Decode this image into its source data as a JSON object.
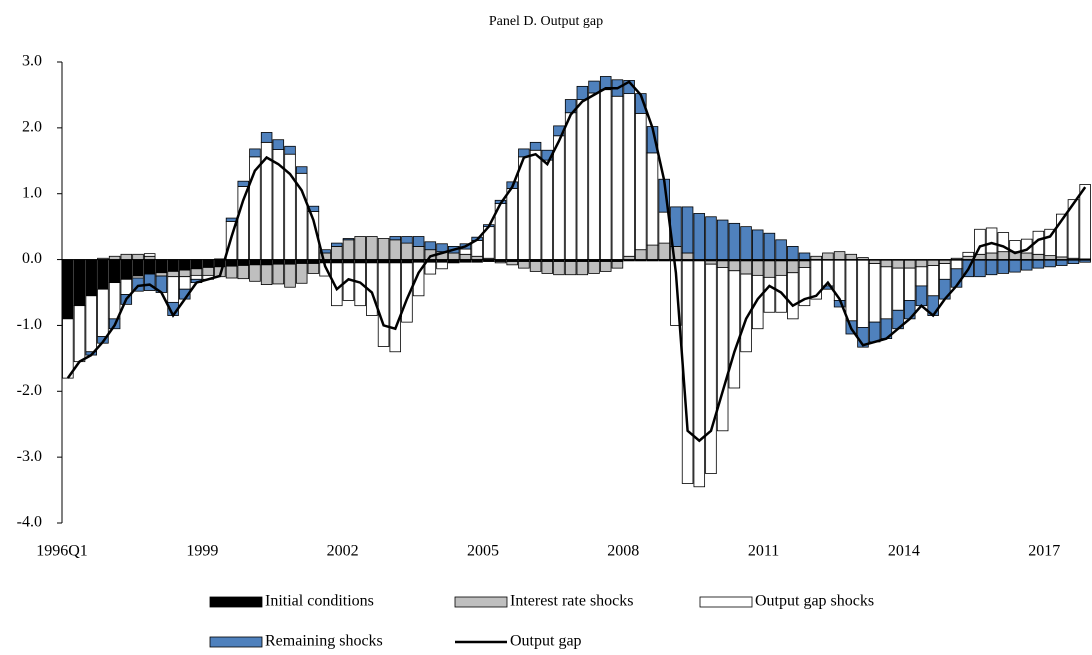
{
  "chart_data": {
    "type": "bar",
    "stacked": true,
    "title": "Panel D. Output gap",
    "categories": [
      "1996Q1",
      null,
      null,
      null,
      null,
      null,
      null,
      null,
      null,
      null,
      null,
      null,
      "1999",
      null,
      null,
      null,
      null,
      null,
      null,
      null,
      null,
      null,
      null,
      null,
      "2002",
      null,
      null,
      null,
      null,
      null,
      null,
      null,
      null,
      null,
      null,
      null,
      "2005",
      null,
      null,
      null,
      null,
      null,
      null,
      null,
      null,
      null,
      null,
      null,
      "2008",
      null,
      null,
      null,
      null,
      null,
      null,
      null,
      null,
      null,
      null,
      null,
      "2011",
      null,
      null,
      null,
      null,
      null,
      null,
      null,
      null,
      null,
      null,
      null,
      "2014",
      null,
      null,
      null,
      null,
      null,
      null,
      null,
      null,
      null,
      null,
      null,
      "2017",
      null,
      null,
      null
    ],
    "ylim": [
      -4,
      3
    ],
    "yticks": [
      {
        "value": -4,
        "label": "-4.0"
      },
      {
        "value": -3,
        "label": "-3.0"
      },
      {
        "value": -2,
        "label": "-2.0"
      },
      {
        "value": -1,
        "label": "-1.0"
      },
      {
        "value": 0,
        "label": "0.0"
      },
      {
        "value": 1,
        "label": "1.0"
      },
      {
        "value": 2,
        "label": "2.0"
      },
      {
        "value": 3,
        "label": "3.0"
      }
    ],
    "grid": false,
    "series": [
      {
        "name": "Initial conditions",
        "color": "#000000",
        "values": [
          -0.9,
          -0.7,
          -0.55,
          -0.45,
          -0.35,
          -0.3,
          -0.25,
          -0.22,
          -0.2,
          -0.18,
          -0.16,
          -0.14,
          -0.12,
          -0.11,
          -0.1,
          -0.09,
          -0.08,
          -0.08,
          -0.07,
          -0.07,
          -0.06,
          -0.06,
          -0.05,
          -0.05,
          -0.05,
          -0.05,
          -0.05,
          -0.05,
          -0.05,
          -0.05,
          -0.04,
          -0.04,
          -0.04,
          -0.04,
          -0.04,
          -0.04,
          -0.03,
          -0.03,
          -0.03,
          -0.03,
          -0.03,
          -0.03,
          -0.03,
          -0.03,
          -0.03,
          -0.03,
          -0.03,
          -0.03,
          -0.02,
          -0.02,
          -0.02,
          -0.02,
          -0.02,
          -0.02,
          -0.02,
          -0.02,
          -0.02,
          -0.02,
          -0.02,
          -0.02,
          -0.02,
          -0.02,
          -0.02,
          -0.02,
          -0.01,
          -0.01,
          -0.01,
          -0.01,
          -0.01,
          -0.01,
          -0.01,
          -0.01,
          -0.01,
          -0.01,
          -0.01,
          -0.01,
          -0.01,
          -0.01,
          -0.01,
          -0.01,
          -0.01,
          -0.01,
          -0.01,
          -0.01,
          -0.01,
          -0.01,
          -0.01,
          -0.01
        ]
      },
      {
        "name": "Interest rate shocks",
        "color": "#bfbfbf",
        "values": [
          0,
          0,
          0,
          0.02,
          0.05,
          0.08,
          0.08,
          0.05,
          -0.05,
          -0.08,
          -0.1,
          -0.1,
          -0.12,
          -0.15,
          -0.18,
          -0.2,
          -0.25,
          -0.3,
          -0.3,
          -0.35,
          -0.3,
          -0.15,
          0.1,
          0.2,
          0.3,
          0.35,
          0.35,
          0.32,
          0.3,
          0.25,
          0.2,
          0.15,
          0.12,
          0.1,
          0.08,
          0.05,
          0.02,
          -0.02,
          -0.05,
          -0.1,
          -0.15,
          -0.18,
          -0.2,
          -0.2,
          -0.2,
          -0.18,
          -0.15,
          -0.1,
          0.05,
          0.15,
          0.22,
          0.25,
          0.2,
          0.1,
          0,
          -0.05,
          -0.1,
          -0.15,
          -0.2,
          -0.22,
          -0.25,
          -0.22,
          -0.18,
          -0.1,
          0.05,
          0.1,
          0.12,
          0.08,
          0.03,
          -0.05,
          -0.1,
          -0.12,
          -0.12,
          -0.1,
          -0.08,
          -0.05,
          0.02,
          0.05,
          0.08,
          0.1,
          0.12,
          0.12,
          0.1,
          0.08,
          0.06,
          0.04,
          0.02,
          0.01
        ]
      },
      {
        "name": "Output gap shocks",
        "color": "#ffffff",
        "values": [
          -0.9,
          -0.85,
          -0.85,
          -0.72,
          -0.55,
          -0.23,
          -0.03,
          0.04,
          0,
          -0.39,
          -0.19,
          -0.06,
          -0.06,
          0.01,
          0.58,
          1.11,
          1.56,
          1.78,
          1.67,
          1.6,
          1.31,
          0.73,
          -0.2,
          -0.65,
          -0.57,
          -0.65,
          -0.8,
          -1.27,
          -1.35,
          -0.9,
          -0.51,
          -0.18,
          -0.1,
          -0.01,
          0.08,
          0.24,
          0.48,
          0.85,
          1.08,
          1.56,
          1.66,
          1.51,
          1.88,
          2.23,
          2.43,
          2.53,
          2.58,
          2.48,
          2.47,
          2.07,
          1.4,
          0.47,
          -0.98,
          -3.38,
          -3.43,
          -3.18,
          -2.48,
          -1.78,
          -1.18,
          -0.81,
          -0.53,
          -0.56,
          -0.7,
          -0.58,
          -0.59,
          -0.39,
          -0.61,
          -0.92,
          -1.02,
          -0.89,
          -0.79,
          -0.64,
          -0.49,
          -0.29,
          -0.46,
          -0.24,
          -0.13,
          0.06,
          0.38,
          0.38,
          0.29,
          0.17,
          0.21,
          0.35,
          0.4,
          0.65,
          0.89,
          1.13
        ]
      },
      {
        "name": "Remaining shocks",
        "color": "#4f81bd",
        "values": [
          0,
          0,
          -0.05,
          -0.1,
          -0.15,
          -0.15,
          -0.2,
          -0.25,
          -0.25,
          -0.2,
          -0.15,
          -0.05,
          0,
          0,
          0.05,
          0.08,
          0.12,
          0.15,
          0.15,
          0.12,
          0.1,
          0.08,
          0.05,
          0.05,
          0.02,
          0,
          0,
          0,
          0.05,
          0.1,
          0.15,
          0.12,
          0.12,
          0.1,
          0.08,
          0.05,
          0.03,
          0.05,
          0.1,
          0.12,
          0.12,
          0.15,
          0.15,
          0.2,
          0.2,
          0.18,
          0.2,
          0.25,
          0.2,
          0.3,
          0.4,
          0.5,
          0.6,
          0.7,
          0.7,
          0.65,
          0.6,
          0.55,
          0.5,
          0.45,
          0.4,
          0.3,
          0.2,
          0.1,
          0,
          -0.05,
          -0.1,
          -0.2,
          -0.3,
          -0.3,
          -0.3,
          -0.28,
          -0.28,
          -0.3,
          -0.3,
          -0.3,
          -0.28,
          -0.25,
          -0.25,
          -0.22,
          -0.2,
          -0.18,
          -0.15,
          -0.12,
          -0.1,
          -0.08,
          -0.05,
          -0.03
        ]
      },
      {
        "name": "Output gap",
        "type": "line",
        "color": "#000000",
        "values": [
          -1.8,
          -1.55,
          -1.45,
          -1.25,
          -1.0,
          -0.6,
          -0.4,
          -0.38,
          -0.5,
          -0.85,
          -0.6,
          -0.35,
          -0.3,
          -0.25,
          0.35,
          0.9,
          1.35,
          1.55,
          1.45,
          1.3,
          1.05,
          0.6,
          -0.1,
          -0.45,
          -0.3,
          -0.35,
          -0.5,
          -1.0,
          -1.05,
          -0.6,
          -0.2,
          0.05,
          0.1,
          0.15,
          0.2,
          0.3,
          0.5,
          0.85,
          1.1,
          1.55,
          1.6,
          1.45,
          1.8,
          2.2,
          2.4,
          2.5,
          2.6,
          2.6,
          2.7,
          2.5,
          2.0,
          1.2,
          -0.2,
          -2.6,
          -2.75,
          -2.6,
          -2.0,
          -1.4,
          -0.9,
          -0.6,
          -0.4,
          -0.5,
          -0.7,
          -0.6,
          -0.55,
          -0.35,
          -0.6,
          -1.05,
          -1.3,
          -1.25,
          -1.2,
          -1.05,
          -0.9,
          -0.7,
          -0.85,
          -0.6,
          -0.4,
          -0.15,
          0.2,
          0.25,
          0.2,
          0.1,
          0.15,
          0.3,
          0.35,
          0.6,
          0.85,
          1.1
        ]
      }
    ]
  }
}
